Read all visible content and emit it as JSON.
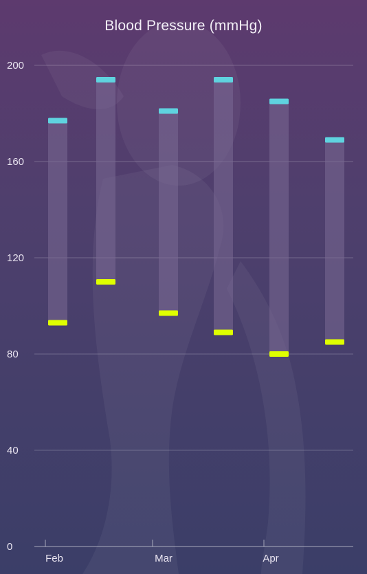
{
  "chart_data": {
    "type": "range-bar",
    "title": "Blood Pressure (mmHg)",
    "xlabel": "",
    "ylabel": "",
    "ylim": [
      0,
      200
    ],
    "yticks": [
      0,
      40,
      80,
      120,
      160,
      200
    ],
    "x_tick_labels": [
      "Feb",
      "Mar",
      "Apr"
    ],
    "grid": true,
    "series": [
      {
        "name": "",
        "values": [
          177,
          194,
          181,
          194,
          185,
          169
        ]
      },
      {
        "name": "",
        "values": [
          93,
          110,
          97,
          89,
          80,
          85
        ]
      }
    ],
    "colors": {
      "systolic": "#5fd3df",
      "diastolic": "#dfff00",
      "range_bar": "#7a6a94"
    }
  }
}
